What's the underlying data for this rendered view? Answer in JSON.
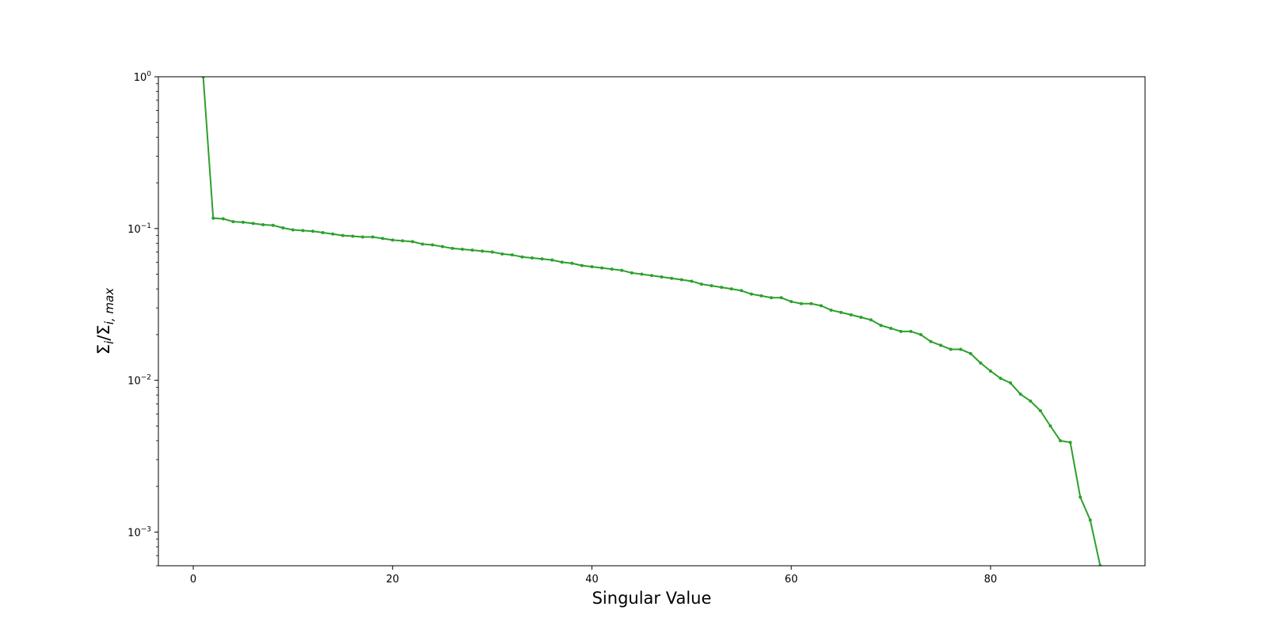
{
  "chart_data": {
    "type": "line",
    "title": "",
    "xlabel": "Singular Value",
    "ylabel": "Σi/Σi, max",
    "ylabel_parts": {
      "sigma1": "Σ",
      "sub1": "i",
      "slash": "/",
      "sigma2": "Σ",
      "sub2": "i, max"
    },
    "yscale": "log",
    "xlim": [
      -3.5,
      95.5
    ],
    "ylim": [
      0.0006,
      1.0
    ],
    "grid": false,
    "legend": "none",
    "xticks": [
      0,
      20,
      40,
      60,
      80
    ],
    "xtick_labels": [
      "0",
      "20",
      "40",
      "60",
      "80"
    ],
    "yticks": [
      {
        "value": 1.0,
        "base": "10",
        "exp": "0"
      },
      {
        "value": 0.1,
        "base": "10",
        "exp": "−1"
      },
      {
        "value": 0.01,
        "base": "10",
        "exp": "−2"
      },
      {
        "value": 0.001,
        "base": "10",
        "exp": "−3"
      }
    ],
    "series": [
      {
        "color": "#2ca02c",
        "marker": "dot",
        "x": [
          1,
          2,
          3,
          4,
          5,
          6,
          7,
          8,
          9,
          10,
          11,
          12,
          13,
          14,
          15,
          16,
          17,
          18,
          19,
          20,
          21,
          22,
          23,
          24,
          25,
          26,
          27,
          28,
          29,
          30,
          31,
          32,
          33,
          34,
          35,
          36,
          37,
          38,
          39,
          40,
          41,
          42,
          43,
          44,
          45,
          46,
          47,
          48,
          49,
          50,
          51,
          52,
          53,
          54,
          55,
          56,
          57,
          58,
          59,
          60,
          61,
          62,
          63,
          64,
          65,
          66,
          67,
          68,
          69,
          70,
          71,
          72,
          73,
          74,
          75,
          76,
          77,
          78,
          79,
          80,
          81,
          82,
          83,
          84,
          85,
          86,
          87,
          88,
          89,
          90,
          91
        ],
        "y": [
          1.0,
          0.117,
          0.116,
          0.111,
          0.11,
          0.108,
          0.106,
          0.105,
          0.101,
          0.098,
          0.097,
          0.096,
          0.094,
          0.092,
          0.09,
          0.089,
          0.088,
          0.088,
          0.086,
          0.084,
          0.083,
          0.082,
          0.079,
          0.078,
          0.076,
          0.074,
          0.073,
          0.072,
          0.071,
          0.07,
          0.068,
          0.067,
          0.065,
          0.064,
          0.063,
          0.062,
          0.06,
          0.059,
          0.057,
          0.056,
          0.055,
          0.054,
          0.053,
          0.051,
          0.05,
          0.049,
          0.048,
          0.047,
          0.046,
          0.045,
          0.043,
          0.042,
          0.041,
          0.04,
          0.039,
          0.037,
          0.036,
          0.035,
          0.035,
          0.033,
          0.032,
          0.032,
          0.031,
          0.029,
          0.028,
          0.027,
          0.026,
          0.025,
          0.023,
          0.022,
          0.021,
          0.021,
          0.02,
          0.018,
          0.017,
          0.016,
          0.016,
          0.015,
          0.013,
          0.0115,
          0.0103,
          0.0096,
          0.0081,
          0.0073,
          0.0063,
          0.005,
          0.004,
          0.0039,
          0.0017,
          0.0012,
          0.0006
        ]
      }
    ]
  }
}
